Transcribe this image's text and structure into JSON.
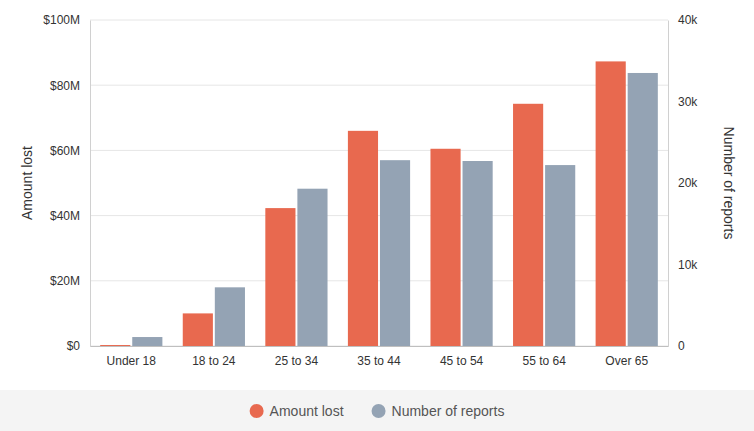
{
  "chart_data": {
    "type": "bar",
    "y_label": "Amount lost",
    "y2_label": "Number of reports",
    "categories": [
      "Under 18",
      "18 to 24",
      "25 to 34",
      "35 to 44",
      "45 to 54",
      "55 to 64",
      "Over 65"
    ],
    "series": [
      {
        "name": "Amount lost",
        "color": "#e8694f",
        "values": [
          0.3,
          10,
          42.3,
          66,
          60.5,
          74.3,
          87.3
        ]
      },
      {
        "name": "Number of reports",
        "color": "#94a3b4",
        "axis": "y2",
        "values": [
          1100,
          7200,
          19300,
          22800,
          22700,
          22200,
          33500
        ]
      }
    ],
    "ylim": [
      0,
      100
    ],
    "yticks": [
      {
        "value": 0,
        "label": "$0"
      },
      {
        "value": 20,
        "label": "$20M"
      },
      {
        "value": 40,
        "label": "$40M"
      },
      {
        "value": 60,
        "label": "$60M"
      },
      {
        "value": 80,
        "label": "$80M"
      },
      {
        "value": 100,
        "label": "$100M"
      }
    ],
    "y2lim": [
      0,
      40000
    ],
    "y2ticks": [
      0,
      {
        "value": 10000,
        "label": "10k"
      },
      {
        "value": 20000,
        "label": "20k"
      },
      {
        "value": 30000,
        "label": "30k"
      },
      {
        "value": 40000,
        "label": "40k"
      }
    ],
    "grid": true,
    "legend": "bottom"
  }
}
